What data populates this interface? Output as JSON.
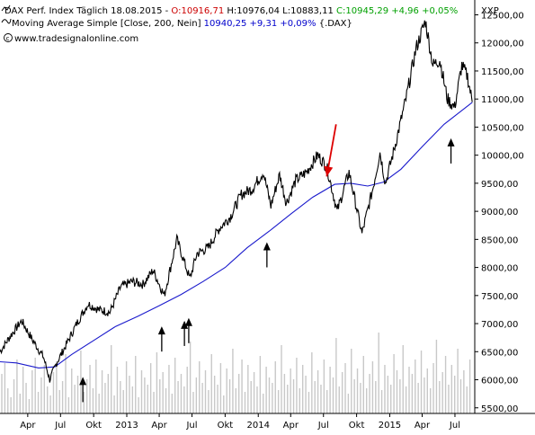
{
  "header": {
    "line1": [
      {
        "text": "DAX Perf. Index Täglich  18.08.2015",
        "color": "#000000"
      },
      {
        "text": " - ",
        "color": "#000000"
      },
      {
        "text": "O:10916,71",
        "color": "#cc0000"
      },
      {
        "text": " ",
        "color": "#000000"
      },
      {
        "text": "H:10976,04",
        "color": "#000000"
      },
      {
        "text": " ",
        "color": "#000000"
      },
      {
        "text": "L:10883,11",
        "color": "#000000"
      },
      {
        "text": " ",
        "color": "#000000"
      },
      {
        "text": "C:10945,29 +4,96 +0,05%",
        "color": "#00a000"
      }
    ],
    "line2": [
      {
        "text": "Moving Average Simple [Close, 200, Nein] ",
        "color": "#000000"
      },
      {
        "text": "10940,25 +9,31 +0,09%",
        "color": "#0000cc"
      },
      {
        "text": " {.DAX}",
        "color": "#000000"
      }
    ],
    "line3": "www.tradesignalonline.com",
    "symbol": "XXP"
  },
  "chart_data": {
    "type": "line",
    "title": "DAX Perf. Index Täglich",
    "ylim": [
      5400,
      12700
    ],
    "y_ticks": [
      {
        "value": 12500,
        "label": "12500,00"
      },
      {
        "value": 12000,
        "label": "12000,00"
      },
      {
        "value": 11500,
        "label": "11500,00"
      },
      {
        "value": 11000,
        "label": "11000,00"
      },
      {
        "value": 10500,
        "label": "10500,00"
      },
      {
        "value": 10000,
        "label": "10000,00"
      },
      {
        "value": 9500,
        "label": "9500,00"
      },
      {
        "value": 9000,
        "label": "9000,00"
      },
      {
        "value": 8500,
        "label": "8500,00"
      },
      {
        "value": 8000,
        "label": "8000,00"
      },
      {
        "value": 7500,
        "label": "7500,00"
      },
      {
        "value": 7000,
        "label": "7000,00"
      },
      {
        "value": 6500,
        "label": "6500,00"
      },
      {
        "value": 6000,
        "label": "6000,00"
      },
      {
        "value": 5500,
        "label": "5500,00"
      }
    ],
    "xlim": [
      "2012-01-15",
      "2015-08-25"
    ],
    "x_ticks": [
      {
        "date": "2012-04-01",
        "label": "Apr"
      },
      {
        "date": "2012-07-01",
        "label": "Jul"
      },
      {
        "date": "2012-10-01",
        "label": "Okt"
      },
      {
        "date": "2013-01-01",
        "label": "2013"
      },
      {
        "date": "2013-04-01",
        "label": "Apr"
      },
      {
        "date": "2013-07-01",
        "label": "Jul"
      },
      {
        "date": "2013-10-01",
        "label": "Okt"
      },
      {
        "date": "2014-01-01",
        "label": "2014"
      },
      {
        "date": "2014-04-01",
        "label": "Apr"
      },
      {
        "date": "2014-07-01",
        "label": "Jul"
      },
      {
        "date": "2014-10-01",
        "label": "Okt"
      },
      {
        "date": "2015-01-01",
        "label": "2015"
      },
      {
        "date": "2015-04-01",
        "label": "Apr"
      },
      {
        "date": "2015-07-01",
        "label": "Jul"
      }
    ],
    "series": [
      {
        "name": "DAX Perf. Index",
        "color": "#000000",
        "points": [
          [
            "2012-01-15",
            6500
          ],
          [
            "2012-02-15",
            6800
          ],
          [
            "2012-03-15",
            7050
          ],
          [
            "2012-04-15",
            6700
          ],
          [
            "2012-05-15",
            6400
          ],
          [
            "2012-06-01",
            6000
          ],
          [
            "2012-06-20",
            6300
          ],
          [
            "2012-07-15",
            6600
          ],
          [
            "2012-08-15",
            7000
          ],
          [
            "2012-09-15",
            7350
          ],
          [
            "2012-10-15",
            7250
          ],
          [
            "2012-11-15",
            7200
          ],
          [
            "2012-12-15",
            7650
          ],
          [
            "2013-01-15",
            7750
          ],
          [
            "2013-02-15",
            7700
          ],
          [
            "2013-03-15",
            7950
          ],
          [
            "2013-04-15",
            7500
          ],
          [
            "2013-05-20",
            8500
          ],
          [
            "2013-06-25",
            7800
          ],
          [
            "2013-07-15",
            8250
          ],
          [
            "2013-08-15",
            8350
          ],
          [
            "2013-09-15",
            8700
          ],
          [
            "2013-10-15",
            8900
          ],
          [
            "2013-11-15",
            9300
          ],
          [
            "2013-12-15",
            9400
          ],
          [
            "2014-01-15",
            9700
          ],
          [
            "2014-02-05",
            9100
          ],
          [
            "2014-03-01",
            9650
          ],
          [
            "2014-03-20",
            9150
          ],
          [
            "2014-04-15",
            9550
          ],
          [
            "2014-05-15",
            9700
          ],
          [
            "2014-06-15",
            10000
          ],
          [
            "2014-07-10",
            9800
          ],
          [
            "2014-08-08",
            9000
          ],
          [
            "2014-09-10",
            9700
          ],
          [
            "2014-10-16",
            8600
          ],
          [
            "2014-11-15",
            9400
          ],
          [
            "2014-12-05",
            10050
          ],
          [
            "2014-12-20",
            9500
          ],
          [
            "2015-01-15",
            10150
          ],
          [
            "2015-02-15",
            11000
          ],
          [
            "2015-03-15",
            11900
          ],
          [
            "2015-04-10",
            12390
          ],
          [
            "2015-05-01",
            11600
          ],
          [
            "2015-05-20",
            11700
          ],
          [
            "2015-06-10",
            11000
          ],
          [
            "2015-06-30",
            10850
          ],
          [
            "2015-07-20",
            11600
          ],
          [
            "2015-08-05",
            11400
          ],
          [
            "2015-08-18",
            10945
          ]
        ]
      },
      {
        "name": "Moving Average Simple [Close, 200, Nein]",
        "color": "#1a1acc",
        "points": [
          [
            "2012-01-15",
            6320
          ],
          [
            "2012-03-01",
            6300
          ],
          [
            "2012-05-01",
            6210
          ],
          [
            "2012-06-15",
            6230
          ],
          [
            "2012-08-01",
            6450
          ],
          [
            "2012-10-01",
            6700
          ],
          [
            "2012-12-01",
            6950
          ],
          [
            "2013-02-01",
            7130
          ],
          [
            "2013-04-01",
            7320
          ],
          [
            "2013-06-01",
            7520
          ],
          [
            "2013-08-01",
            7750
          ],
          [
            "2013-10-01",
            8000
          ],
          [
            "2013-12-01",
            8350
          ],
          [
            "2014-02-01",
            8650
          ],
          [
            "2014-04-01",
            8950
          ],
          [
            "2014-06-01",
            9250
          ],
          [
            "2014-08-01",
            9480
          ],
          [
            "2014-09-15",
            9500
          ],
          [
            "2014-11-01",
            9450
          ],
          [
            "2014-12-15",
            9520
          ],
          [
            "2015-02-01",
            9750
          ],
          [
            "2015-04-01",
            10150
          ],
          [
            "2015-06-01",
            10550
          ],
          [
            "2015-08-18",
            10940
          ]
        ]
      }
    ],
    "volume": [
      22,
      28,
      14,
      9,
      19,
      30,
      11,
      26,
      17,
      8,
      24,
      31,
      12,
      20,
      27,
      15,
      10,
      23,
      29,
      13,
      18,
      33,
      9,
      25,
      16,
      21,
      35,
      12,
      19,
      27,
      14,
      30,
      11,
      24,
      17,
      22,
      38,
      10,
      26,
      18,
      13,
      29,
      21,
      15,
      32,
      9,
      24,
      20,
      16,
      28,
      12,
      34,
      19,
      23,
      14,
      27,
      11,
      31,
      18,
      22,
      15,
      26,
      40,
      12,
      20,
      29,
      17,
      24,
      13,
      33,
      21,
      16,
      28,
      10,
      25,
      19,
      36,
      14,
      22,
      30,
      12,
      27,
      18,
      23,
      15,
      32,
      11,
      26,
      20,
      17,
      29,
      13,
      38,
      22,
      16,
      25,
      19,
      31,
      14,
      27,
      21,
      12,
      34,
      18,
      24,
      16,
      30,
      13,
      26,
      20,
      42,
      15,
      23,
      28,
      11,
      36,
      19,
      25,
      17,
      32,
      14,
      22,
      29,
      18,
      45,
      13,
      27,
      21,
      16,
      33,
      24,
      19,
      38,
      15,
      26,
      22,
      30,
      17,
      35,
      20,
      25,
      14,
      28,
      41,
      18,
      23,
      32,
      16,
      27,
      21,
      36,
      19,
      24,
      15,
      30
    ],
    "annotations": {
      "arrows_up": [
        {
          "date": "2012-09-01",
          "value": 6050
        },
        {
          "date": "2013-04-08",
          "value": 6950
        },
        {
          "date": "2013-06-10",
          "value": 7050
        },
        {
          "date": "2013-06-22",
          "value": 7100
        },
        {
          "date": "2014-01-25",
          "value": 8450
        },
        {
          "date": "2015-06-20",
          "value": 10300
        }
      ],
      "arrow_highlight": {
        "from_date": "2014-08-05",
        "from_value": 10550,
        "to_date": "2014-07-10",
        "to_value": 9620,
        "color": "#dd0000"
      }
    }
  }
}
